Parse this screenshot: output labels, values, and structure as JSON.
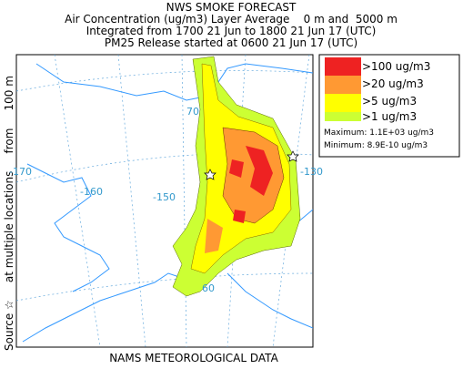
{
  "header": {
    "title": "NWS SMOKE FORECAST",
    "lines": [
      "Air Concentration (ug/m3) Layer Average    0 m and  5000 m",
      "Integrated from 1700 21 Jun to 1800 21 Jun 17 (UTC)",
      "PM25 Release started at 0600 21 Jun 17 (UTC)"
    ]
  },
  "side_label": "Source ☆     at multiple locations     from     100 m",
  "legend": {
    "items": [
      ">100 ug/m3",
      ">20 ug/m3",
      ">5 ug/m3",
      ">1 ug/m3"
    ],
    "maximum": "Maximum: 1.1E+03 ug/m3",
    "minimum": "Minimum: 8.9E-10 ug/m3"
  },
  "map_labels": [
    "-170",
    "-160",
    "-150",
    "70",
    "-130",
    "60"
  ],
  "footer": "NAMS METEOROLOGICAL DATA"
}
